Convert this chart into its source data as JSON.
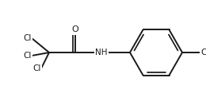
{
  "bg_color": "#ffffff",
  "line_color": "#1a1a1a",
  "line_width": 1.4,
  "font_size": 7.5,
  "figsize": [
    2.6,
    1.32
  ],
  "dpi": 100,
  "xlim": [
    0.0,
    1.0
  ],
  "ylim": [
    0.0,
    1.0
  ]
}
